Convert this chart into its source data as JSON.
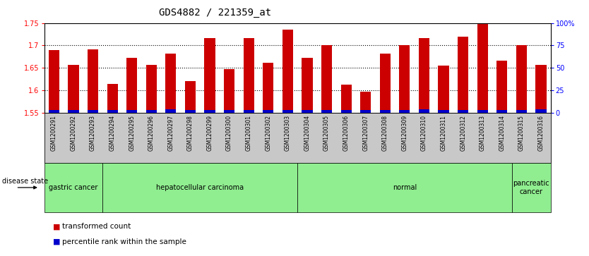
{
  "title": "GDS4882 / 221359_at",
  "samples": [
    "GSM1200291",
    "GSM1200292",
    "GSM1200293",
    "GSM1200294",
    "GSM1200295",
    "GSM1200296",
    "GSM1200297",
    "GSM1200298",
    "GSM1200299",
    "GSM1200300",
    "GSM1200301",
    "GSM1200302",
    "GSM1200303",
    "GSM1200304",
    "GSM1200305",
    "GSM1200306",
    "GSM1200307",
    "GSM1200308",
    "GSM1200309",
    "GSM1200310",
    "GSM1200311",
    "GSM1200312",
    "GSM1200313",
    "GSM1200314",
    "GSM1200315",
    "GSM1200316"
  ],
  "transformed_count": [
    1.69,
    1.656,
    1.692,
    1.614,
    1.672,
    1.656,
    1.682,
    1.621,
    1.716,
    1.647,
    1.716,
    1.661,
    1.735,
    1.673,
    1.7,
    1.612,
    1.597,
    1.682,
    1.7,
    1.716,
    1.655,
    1.72,
    1.752,
    1.666,
    1.7,
    1.656
  ],
  "percentile_rank": [
    3,
    3,
    3,
    3,
    3,
    3,
    4,
    3,
    3,
    3,
    3,
    3,
    3,
    3,
    3,
    3,
    3,
    3,
    3,
    4,
    3,
    3,
    3,
    3,
    3,
    4
  ],
  "disease_groups": [
    {
      "label": "gastric cancer",
      "start": 0,
      "end": 3
    },
    {
      "label": "hepatocellular carcinoma",
      "start": 3,
      "end": 13
    },
    {
      "label": "normal",
      "start": 13,
      "end": 24
    },
    {
      "label": "pancreatic\ncancer",
      "start": 24,
      "end": 26
    }
  ],
  "ylim_left": [
    1.55,
    1.75
  ],
  "ylim_right": [
    0,
    100
  ],
  "bar_color": "#CC0000",
  "percentile_color": "#0000CC",
  "group_color": "#90EE90",
  "xtick_bg": "#C8C8C8",
  "title_fontsize": 10,
  "tick_fontsize": 7,
  "sample_fontsize": 5.5,
  "left_yticks": [
    1.55,
    1.6,
    1.65,
    1.7,
    1.75
  ],
  "right_yticks": [
    0,
    25,
    50,
    75,
    100
  ],
  "right_yticklabels": [
    "0",
    "25",
    "50",
    "75",
    "100%"
  ],
  "grid_yticks": [
    1.6,
    1.65,
    1.7
  ]
}
